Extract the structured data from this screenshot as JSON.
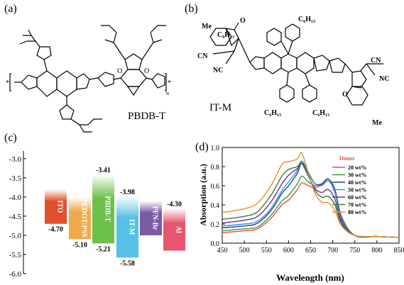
{
  "panels": {
    "a": "(a)",
    "b": "(b)",
    "c": "(c)",
    "d": "(d)"
  },
  "molecules": {
    "a": {
      "name": "PBDB-T",
      "atoms": {
        "o1": "O",
        "o2": "O",
        "star_left": "*",
        "star_right": "*",
        "n_index": "n"
      }
    },
    "b": {
      "name": "IT-M",
      "atoms": {
        "me1": "Me",
        "me2": "Me",
        "cn1": "CN",
        "nc1": "NC",
        "cn2": "CN",
        "nc2": "NC",
        "o1": "O",
        "o2": "O",
        "c6_1": "C₆H₁₃",
        "c6_2": "C₆H₁₃",
        "c6_3": "C₆H₁₃",
        "c6_4": "C₆H₁₃"
      }
    }
  },
  "chart_data": [
    {
      "type": "bar",
      "panel": "(c)",
      "title": "",
      "ylabel": "",
      "ylim": [
        -6.0,
        -2.8
      ],
      "yticks": [
        "-3.0",
        "-3.5",
        "-4.0",
        "-4.5",
        "-5.0",
        "-5.5",
        "-6.0"
      ],
      "categories": [
        "ITO",
        "PEDOT:PSS",
        "PBDB-T",
        "IT-M",
        "PFN-Br",
        "Al"
      ],
      "levels": [
        {
          "name": "ITO",
          "top": -3.8,
          "bottom": -4.7,
          "top_label": "",
          "bottom_label": "-4.70",
          "color": "#e0502d"
        },
        {
          "name": "PEDOT:PSS",
          "top": -4.0,
          "bottom": -5.1,
          "top_label": "",
          "bottom_label": "-5.10",
          "color": "#f0a848"
        },
        {
          "name": "PBDB-T",
          "top": -3.41,
          "bottom": -5.21,
          "top_label": "-3.41",
          "bottom_label": "-5.21",
          "color": "#6cc04a"
        },
        {
          "name": "IT-M",
          "top": -3.98,
          "bottom": -5.58,
          "top_label": "-3.98",
          "bottom_label": "-5.58",
          "color": "#56c1e6"
        },
        {
          "name": "PFN-Br",
          "top": -4.1,
          "bottom": -5.0,
          "top_label": "",
          "bottom_label": "",
          "color": "#7b5aa6"
        },
        {
          "name": "Al",
          "top": -4.3,
          "bottom": -5.4,
          "top_label": "-4.30",
          "bottom_label": "",
          "color": "#e8556e"
        }
      ]
    },
    {
      "type": "line",
      "panel": "(d)",
      "title": "",
      "xlabel": "Wavelength (nm)",
      "ylabel": "Absorption (a.u.)",
      "xlim": [
        450,
        850
      ],
      "ylim": [
        0.0,
        1.0
      ],
      "xticks": [
        450,
        500,
        550,
        600,
        650,
        700,
        750,
        800,
        850
      ],
      "yticks": [
        "0.0",
        "0.2",
        "0.4",
        "0.6",
        "0.8",
        "1.0"
      ],
      "legend_title": "Donor",
      "legend_position": "top-right",
      "x": [
        450,
        500,
        530,
        560,
        585,
        600,
        620,
        630,
        645,
        660,
        675,
        690,
        705,
        720,
        750,
        800,
        850
      ],
      "series": [
        {
          "name": "20 wt%",
          "color": "#e84a4a",
          "values": [
            0.11,
            0.13,
            0.15,
            0.26,
            0.4,
            0.45,
            0.56,
            0.63,
            0.6,
            0.58,
            0.61,
            0.67,
            0.56,
            0.28,
            0.08,
            0.07,
            0.06
          ]
        },
        {
          "name": "30 wt%",
          "color": "#3a9e3a",
          "values": [
            0.13,
            0.15,
            0.17,
            0.29,
            0.44,
            0.5,
            0.62,
            0.7,
            0.64,
            0.6,
            0.62,
            0.67,
            0.55,
            0.27,
            0.08,
            0.07,
            0.06
          ]
        },
        {
          "name": "40 wt%",
          "color": "#2b3c9a",
          "values": [
            0.16,
            0.18,
            0.21,
            0.34,
            0.52,
            0.6,
            0.73,
            0.84,
            0.73,
            0.62,
            0.62,
            0.67,
            0.55,
            0.25,
            0.08,
            0.07,
            0.06
          ]
        },
        {
          "name": "50 wt%",
          "color": "#2a9ad8",
          "values": [
            0.18,
            0.2,
            0.23,
            0.36,
            0.55,
            0.64,
            0.76,
            0.86,
            0.74,
            0.62,
            0.6,
            0.65,
            0.53,
            0.24,
            0.08,
            0.07,
            0.06
          ]
        },
        {
          "name": "60 wt%",
          "color": "#7a2a9a",
          "values": [
            0.21,
            0.24,
            0.28,
            0.43,
            0.62,
            0.71,
            0.78,
            0.83,
            0.7,
            0.57,
            0.53,
            0.56,
            0.46,
            0.22,
            0.08,
            0.07,
            0.06
          ]
        },
        {
          "name": "70 wt%",
          "color": "#3a7a3a",
          "values": [
            0.25,
            0.28,
            0.33,
            0.5,
            0.7,
            0.77,
            0.8,
            0.84,
            0.7,
            0.55,
            0.48,
            0.49,
            0.4,
            0.2,
            0.08,
            0.07,
            0.06
          ]
        },
        {
          "name": "80 wt%",
          "color": "#f08a20",
          "values": [
            0.32,
            0.36,
            0.42,
            0.6,
            0.82,
            0.85,
            0.88,
            0.94,
            0.73,
            0.52,
            0.43,
            0.42,
            0.34,
            0.18,
            0.08,
            0.07,
            0.06
          ]
        }
      ]
    }
  ]
}
